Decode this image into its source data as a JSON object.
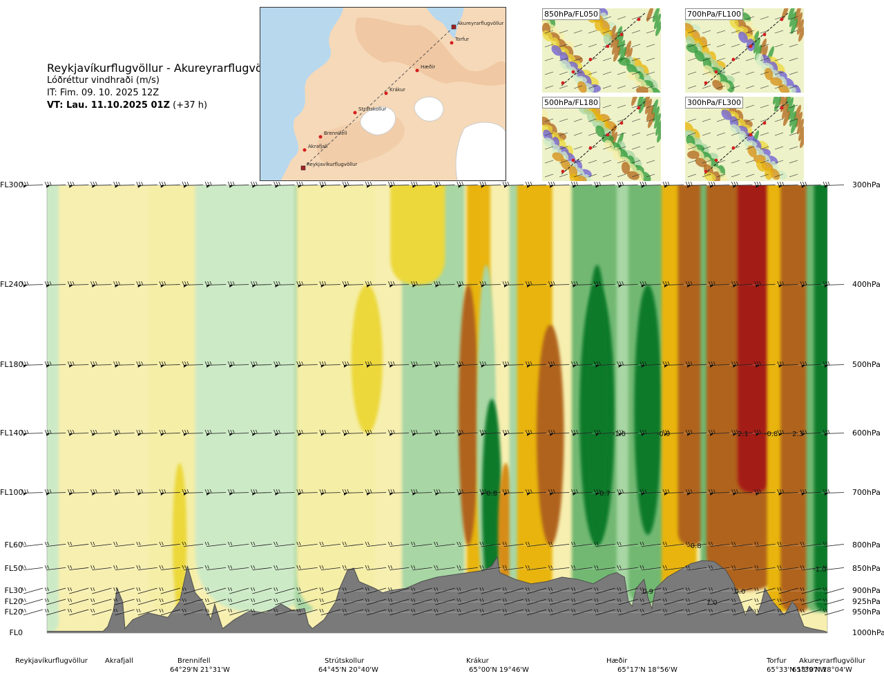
{
  "header": {
    "route": "Reykjavíkurflugvöllur - Akureyrarflugvöllur",
    "variable": "Lóðréttur vindhraði (m/s)",
    "issue_time": "IT: Fim. 09. 10. 2025 12Z",
    "valid_label": "VT: Lau. 11.10.2025 01Z",
    "valid_offset": "(+37 h)"
  },
  "map": {
    "points": [
      {
        "name": "Reykjavíkurflugvöllur",
        "type": "airport"
      },
      {
        "name": "Akrafjall",
        "type": "point"
      },
      {
        "name": "Brennifell",
        "type": "point"
      },
      {
        "name": "Strútskollur",
        "type": "point"
      },
      {
        "name": "Krákur",
        "type": "point"
      },
      {
        "name": "Hæðir",
        "type": "point"
      },
      {
        "name": "Torfur",
        "type": "point"
      },
      {
        "name": "Akureyrarflugvöllur",
        "type": "airport"
      }
    ]
  },
  "thumbnails": [
    {
      "label": "850hPa/FL050"
    },
    {
      "label": "700hPa/FL100"
    },
    {
      "label": "500hPa/FL180"
    },
    {
      "label": "300hPa/FL300"
    }
  ],
  "colors": {
    "strong_up": "#6a5ad6",
    "up_3": "#4a80b8",
    "up_2": "#0a7a2a",
    "up_1": "#2e9a38",
    "up_05": "#72b872",
    "up_02": "#a8d6a4",
    "up_01": "#cdeac6",
    "zero": "#eef8e6",
    "down_01": "#f5eea6",
    "down_02": "#ecd83a",
    "down_05": "#e8b408",
    "down_1": "#d68c12",
    "down_2": "#b0641a",
    "down_3": "#8c3a14",
    "strong_down": "#a41a18",
    "terrain": "#7a7a7a"
  },
  "chart_data": {
    "type": "heatmap",
    "title": "Lóðréttur vindhraði (m/s)",
    "y_flight_levels": [
      "FL300",
      "FL240",
      "FL180",
      "FL140",
      "FL100",
      "FL60",
      "FL50",
      "FL30",
      "FL20",
      "FL20",
      "FL0"
    ],
    "y_pressure_levels": [
      "300hPa",
      "400hPa",
      "500hPa",
      "600hPa",
      "700hPa",
      "800hPa",
      "850hPa",
      "900hPa",
      "925hPa",
      "950hPa",
      "1000hPa"
    ],
    "pressure_values_hpa": [
      300,
      400,
      500,
      600,
      700,
      800,
      850,
      900,
      925,
      950,
      1000
    ],
    "x_locations": [
      {
        "name": "Reykjavíkurflugvöllur",
        "coord": ""
      },
      {
        "name": "Akrafjall",
        "coord": ""
      },
      {
        "name": "Brennifell",
        "coord": "64°29'N 21°31'W"
      },
      {
        "name": "Strútskollur",
        "coord": "64°45'N 20°40'W"
      },
      {
        "name": "Krákur",
        "coord": "65°00'N 19°46'W"
      },
      {
        "name": "Hæðir",
        "coord": "65°17'N 18°56'W"
      },
      {
        "name": "Torfur",
        "coord": "65°33'N 18°07'W"
      },
      {
        "name": "Akureyrarflugvöllur",
        "coord": "65°39'N 18°04'W"
      }
    ],
    "route_fraction": [
      0.0,
      0.098,
      0.2,
      0.41,
      0.588,
      0.75,
      0.946,
      1.0
    ],
    "contour_labels": [
      {
        "text": "-1.0",
        "route_pos": 0.733,
        "level_hpa": 600
      },
      {
        "text": "-0.9",
        "route_pos": 0.79,
        "level_hpa": 600
      },
      {
        "text": "2.1",
        "route_pos": 0.892,
        "level_hpa": 600
      },
      {
        "text": "-0.8",
        "route_pos": 0.928,
        "level_hpa": 600
      },
      {
        "text": "2.3",
        "route_pos": 0.962,
        "level_hpa": 600
      },
      {
        "text": "0.8",
        "route_pos": 0.57,
        "level_hpa": 700
      },
      {
        "text": "0.7",
        "route_pos": 0.715,
        "level_hpa": 700
      },
      {
        "text": "-0.8",
        "route_pos": 0.83,
        "level_hpa": 800
      },
      {
        "text": "-1.0",
        "route_pos": 0.99,
        "level_hpa": 850
      },
      {
        "text": "0.9",
        "route_pos": 0.77,
        "level_hpa": 900
      },
      {
        "text": "0.0",
        "route_pos": 0.888,
        "level_hpa": 900
      },
      {
        "text": "1.0",
        "route_pos": 0.852,
        "level_hpa": 925
      }
    ],
    "bands": [
      {
        "center": 0.0,
        "width": 0.03,
        "top": 300,
        "bottom": 1000,
        "value": 0.1
      },
      {
        "center": 0.16,
        "width": 0.06,
        "top": 300,
        "bottom": 950,
        "value": -0.05
      },
      {
        "center": 0.17,
        "width": 0.018,
        "top": 650,
        "bottom": 950,
        "value": -0.2
      },
      {
        "center": 0.27,
        "width": 0.16,
        "top": 300,
        "bottom": 950,
        "value": 0.15
      },
      {
        "center": 0.33,
        "width": 0.025,
        "top": 300,
        "bottom": 950,
        "value": 0.3
      },
      {
        "center": 0.37,
        "width": 0.1,
        "top": 300,
        "bottom": 950,
        "value": -0.1
      },
      {
        "center": 0.41,
        "width": 0.04,
        "top": 400,
        "bottom": 600,
        "value": -0.3
      },
      {
        "center": 0.495,
        "width": 0.08,
        "top": 300,
        "bottom": 950,
        "value": 0.2
      },
      {
        "center": 0.475,
        "width": 0.07,
        "top": 300,
        "bottom": 400,
        "value": -0.3
      },
      {
        "center": 0.553,
        "width": 0.03,
        "top": 300,
        "bottom": 930,
        "value": -0.4
      },
      {
        "center": 0.54,
        "width": 0.025,
        "top": 400,
        "bottom": 800,
        "value": -1.2
      },
      {
        "center": 0.563,
        "width": 0.025,
        "top": 380,
        "bottom": 930,
        "value": 0.25
      },
      {
        "center": 0.57,
        "width": 0.025,
        "top": 550,
        "bottom": 930,
        "value": 1.0
      },
      {
        "center": 0.588,
        "width": 0.02,
        "top": 650,
        "bottom": 930,
        "value": -0.9
      },
      {
        "center": 0.605,
        "width": 0.025,
        "top": 300,
        "bottom": 930,
        "value": 0.3
      },
      {
        "center": 0.625,
        "width": 0.045,
        "top": 300,
        "bottom": 930,
        "value": -0.4
      },
      {
        "center": 0.645,
        "width": 0.035,
        "top": 450,
        "bottom": 800,
        "value": -1.1
      },
      {
        "center": 0.705,
        "width": 0.065,
        "top": 300,
        "bottom": 930,
        "value": 0.5
      },
      {
        "center": 0.705,
        "width": 0.045,
        "top": 400,
        "bottom": 800,
        "value": 1.0
      },
      {
        "center": 0.705,
        "width": 0.028,
        "top": 380,
        "bottom": 800,
        "value": 1.2
      },
      {
        "center": 0.745,
        "width": 0.03,
        "top": 300,
        "bottom": 930,
        "value": 0.3
      },
      {
        "center": 0.77,
        "width": 0.05,
        "top": 300,
        "bottom": 930,
        "value": 0.6
      },
      {
        "center": 0.77,
        "width": 0.035,
        "top": 400,
        "bottom": 780,
        "value": 1.2
      },
      {
        "center": 0.81,
        "width": 0.045,
        "top": 300,
        "bottom": 930,
        "value": -0.4
      },
      {
        "center": 0.826,
        "width": 0.035,
        "top": 300,
        "bottom": 800,
        "value": -1.0
      },
      {
        "center": 0.855,
        "width": 0.035,
        "top": 300,
        "bottom": 950,
        "value": 0.5
      },
      {
        "center": 0.868,
        "width": 0.03,
        "top": 300,
        "bottom": 950,
        "value": 1.0
      },
      {
        "center": 0.895,
        "width": 0.1,
        "top": 300,
        "bottom": 900,
        "value": -1.2
      },
      {
        "center": 0.905,
        "width": 0.04,
        "top": 300,
        "bottom": 700,
        "value": -2.5
      },
      {
        "center": 0.94,
        "width": 0.035,
        "top": 300,
        "bottom": 950,
        "value": -0.4
      },
      {
        "center": 0.96,
        "width": 0.04,
        "top": 300,
        "bottom": 950,
        "value": -1.0
      },
      {
        "center": 0.988,
        "width": 0.03,
        "top": 300,
        "bottom": 950,
        "value": 0.5
      },
      {
        "center": 1.003,
        "width": 0.04,
        "top": 300,
        "bottom": 950,
        "value": 1.2
      },
      {
        "center": 1.03,
        "width": 0.05,
        "top": 300,
        "bottom": 950,
        "value": -0.4
      },
      {
        "center": 1.045,
        "width": 0.03,
        "top": 300,
        "bottom": 950,
        "value": 0.4
      },
      {
        "center": 1.07,
        "width": 0.06,
        "top": 300,
        "bottom": 950,
        "value": -1.1
      },
      {
        "center": 1.09,
        "width": 0.045,
        "top": 300,
        "bottom": 950,
        "value": 2.3
      },
      {
        "center": 1.125,
        "width": 0.03,
        "top": 300,
        "bottom": 950,
        "value": -0.5
      },
      {
        "center": 1.15,
        "width": 0.045,
        "top": 300,
        "bottom": 950,
        "value": 2.0
      },
      {
        "center": 1.18,
        "width": 0.035,
        "top": 300,
        "bottom": 950,
        "value": -0.7
      },
      {
        "center": 1.205,
        "width": 0.045,
        "top": 300,
        "bottom": 950,
        "value": -2.8
      }
    ]
  }
}
